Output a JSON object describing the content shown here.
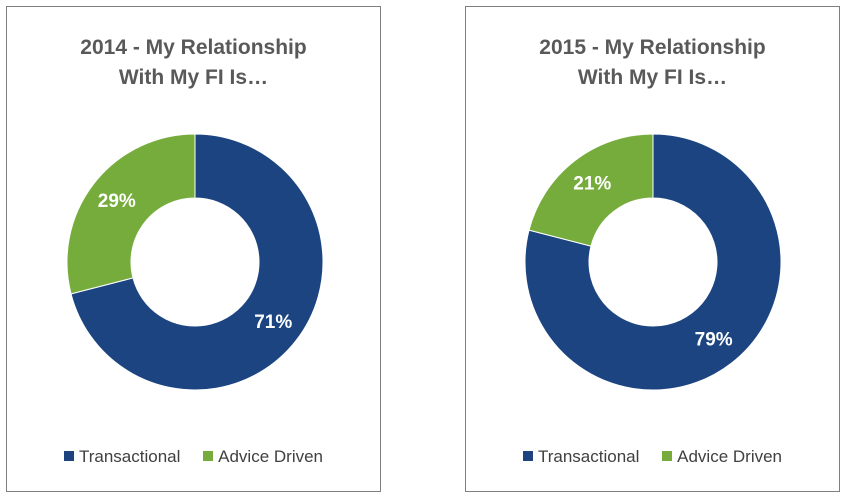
{
  "chart_data": [
    {
      "type": "pie",
      "variant": "donut",
      "title": [
        "2014 - My Relationship",
        "With My FI Is…"
      ],
      "categories": [
        "Transactional",
        "Advice Driven"
      ],
      "values": [
        71,
        29
      ],
      "labels": [
        "71%",
        "29%"
      ],
      "colors": [
        "#1b4481",
        "#76ac3c"
      ],
      "legend": "bottom"
    },
    {
      "type": "pie",
      "variant": "donut",
      "title": [
        "2015 - My Relationship",
        "With My FI Is…"
      ],
      "categories": [
        "Transactional",
        "Advice Driven"
      ],
      "values": [
        79,
        21
      ],
      "labels": [
        "79%",
        "21%"
      ],
      "colors": [
        "#1b4481",
        "#76ac3c"
      ],
      "legend": "bottom"
    }
  ]
}
